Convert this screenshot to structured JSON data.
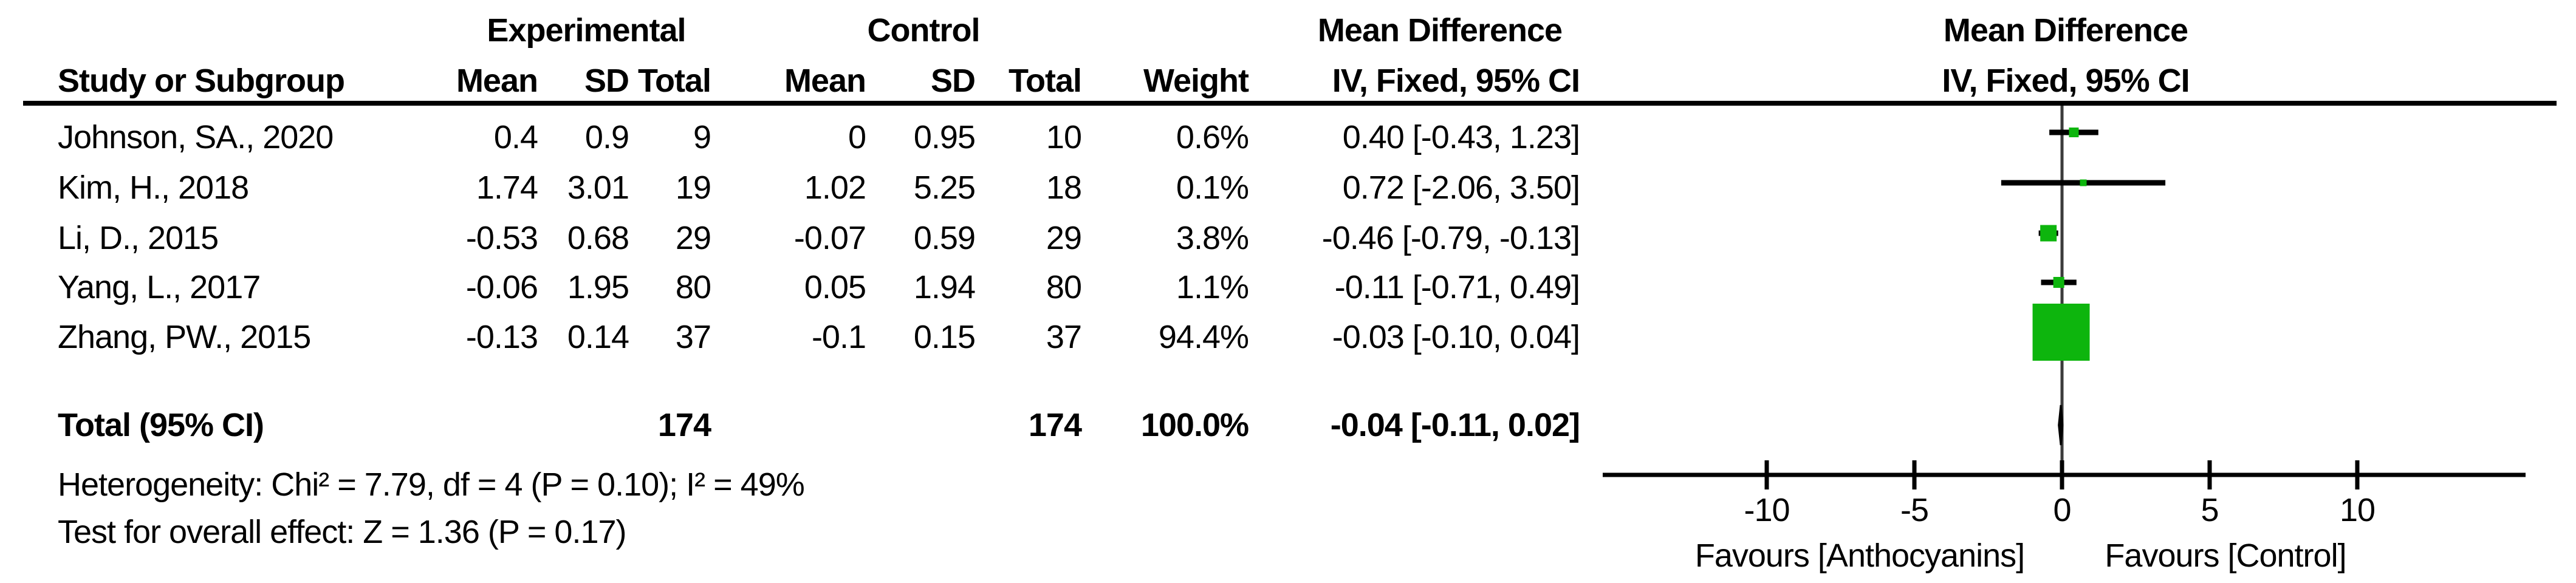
{
  "header": {
    "experimental": "Experimental",
    "control": "Control",
    "mean_difference": "Mean Difference",
    "study": "Study or Subgroup",
    "mean": "Mean",
    "sd": "SD",
    "total": "Total",
    "weight": "Weight",
    "ci": "IV, Fixed, 95% CI"
  },
  "table": {
    "rows": [
      {
        "study": "Johnson, SA., 2020",
        "exp_mean": "0.4",
        "exp_sd": "0.9",
        "exp_total": "9",
        "ctrl_mean": "0",
        "ctrl_sd": "0.95",
        "ctrl_total": "10",
        "weight": "0.6%",
        "ci_text": "0.40 [-0.43, 1.23]"
      },
      {
        "study": "Kim, H., 2018",
        "exp_mean": "1.74",
        "exp_sd": "3.01",
        "exp_total": "19",
        "ctrl_mean": "1.02",
        "ctrl_sd": "5.25",
        "ctrl_total": "18",
        "weight": "0.1%",
        "ci_text": "0.72 [-2.06, 3.50]"
      },
      {
        "study": "Li, D., 2015",
        "exp_mean": "-0.53",
        "exp_sd": "0.68",
        "exp_total": "29",
        "ctrl_mean": "-0.07",
        "ctrl_sd": "0.59",
        "ctrl_total": "29",
        "weight": "3.8%",
        "ci_text": "-0.46 [-0.79, -0.13]"
      },
      {
        "study": "Yang, L., 2017",
        "exp_mean": "-0.06",
        "exp_sd": "1.95",
        "exp_total": "80",
        "ctrl_mean": "0.05",
        "ctrl_sd": "1.94",
        "ctrl_total": "80",
        "weight": "1.1%",
        "ci_text": "-0.11 [-0.71, 0.49]"
      },
      {
        "study": "Zhang, PW., 2015",
        "exp_mean": "-0.13",
        "exp_sd": "0.14",
        "exp_total": "37",
        "ctrl_mean": "-0.1",
        "ctrl_sd": "0.15",
        "ctrl_total": "37",
        "weight": "94.4%",
        "ci_text": "-0.03 [-0.10, 0.04]"
      }
    ],
    "total": {
      "label": "Total (95% CI)",
      "exp_total": "174",
      "ctrl_total": "174",
      "weight": "100.0%",
      "ci_text": "-0.04 [-0.11, 0.02]"
    }
  },
  "stats": {
    "heterogeneity": "Heterogeneity: Chi² = 7.79, df = 4 (P = 0.10); I² = 49%",
    "overall_effect": "Test for overall effect: Z = 1.36 (P = 0.17)"
  },
  "chart_data": {
    "type": "forest",
    "title": "Mean Difference",
    "subtitle": "IV, Fixed, 95% CI",
    "effect_measure": "Mean Difference",
    "model": "Fixed",
    "axis": {
      "ticks": [
        -10,
        -5,
        0,
        5,
        10
      ],
      "min": -15.7,
      "max": 15.6,
      "zero_line": 0,
      "grid": false
    },
    "favours_left": "Favours [Anthocyanins]",
    "favours_right": "Favours [Control]",
    "marker_color": "#0db50d",
    "line_color": "#000000",
    "studies": [
      {
        "name": "Johnson, SA., 2020",
        "estimate": 0.4,
        "ci_low": -0.43,
        "ci_high": 1.23,
        "weight_pct": 0.6
      },
      {
        "name": "Kim, H., 2018",
        "estimate": 0.72,
        "ci_low": -2.06,
        "ci_high": 3.5,
        "weight_pct": 0.1
      },
      {
        "name": "Li, D., 2015",
        "estimate": -0.46,
        "ci_low": -0.79,
        "ci_high": -0.13,
        "weight_pct": 3.8
      },
      {
        "name": "Yang, L., 2017",
        "estimate": -0.11,
        "ci_low": -0.71,
        "ci_high": 0.49,
        "weight_pct": 1.1
      },
      {
        "name": "Zhang, PW., 2015",
        "estimate": -0.03,
        "ci_low": -0.1,
        "ci_high": 0.04,
        "weight_pct": 94.4
      }
    ],
    "total": {
      "label": "Total (95% CI)",
      "estimate": -0.04,
      "ci_low": -0.11,
      "ci_high": 0.02,
      "weight_pct": 100.0
    }
  }
}
